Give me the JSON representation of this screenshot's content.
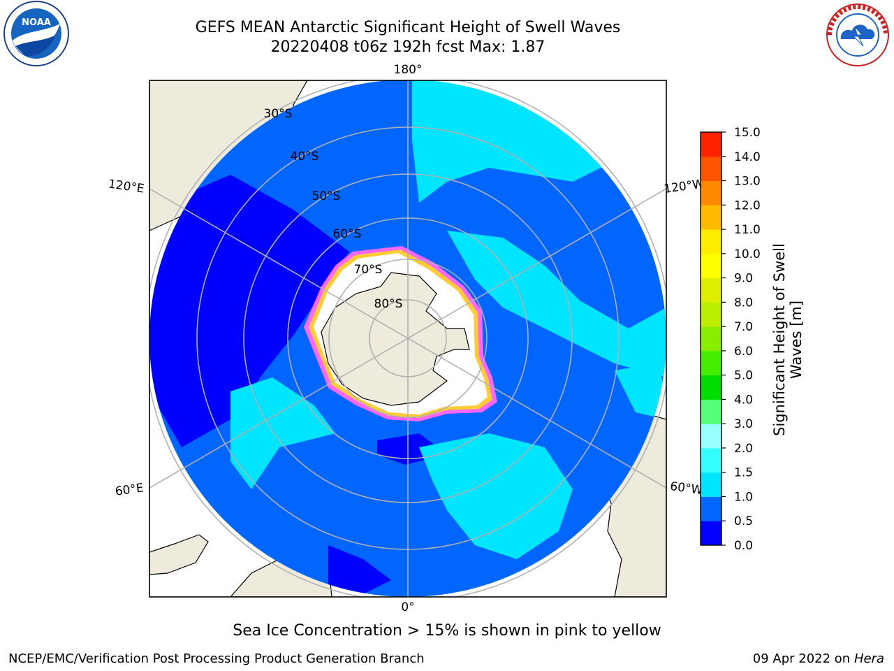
{
  "title": {
    "line1": "GEFS MEAN Antarctic Significant Height of Swell Waves",
    "line2": "20220408 t06z 192h fcst   Max: 1.87"
  },
  "logos": {
    "left": "noaa-logo",
    "left_text": "NOAA",
    "right": "nws-logo",
    "right_text": "NATIONAL WEATHER SERVICE"
  },
  "map": {
    "projection": "south-polar-stereographic",
    "longitude_labels": [
      "180°",
      "120°E",
      "120°W",
      "60°E",
      "60°W",
      "0°"
    ],
    "latitude_labels": [
      "30°S",
      "40°S",
      "50°S",
      "60°S",
      "70°S",
      "80°S"
    ],
    "land_color": "#EFEBDC",
    "ice_edge_colors": [
      "#FF66FF",
      "#FFCC33",
      "#FFFFFF"
    ]
  },
  "colorbar": {
    "title": "Significant Height of Swell Waves [m]",
    "ticks": [
      "0.0",
      "0.5",
      "1.0",
      "1.5",
      "2.0",
      "3.0",
      "4.0",
      "5.0",
      "6.0",
      "7.0",
      "8.0",
      "9.0",
      "10.0",
      "11.0",
      "12.0",
      "13.0",
      "14.0",
      "15.0"
    ],
    "colors": [
      "#0000FF",
      "#0066FF",
      "#00E5FF",
      "#33FFFF",
      "#99FFFF",
      "#55FF77",
      "#00DD00",
      "#44EE00",
      "#88EE00",
      "#BBEE00",
      "#DDEE00",
      "#FFFF00",
      "#FFEE00",
      "#FFBB00",
      "#FF8800",
      "#FF5500",
      "#FF2200"
    ]
  },
  "footer": {
    "note": "Sea Ice Concentration > 15% is shown in pink to yellow",
    "credit_left": "NCEP/EMC/Verification Post Processing Product Generation Branch",
    "credit_right_prefix": "09 Apr 2022 on ",
    "credit_right_host": "Hera"
  }
}
